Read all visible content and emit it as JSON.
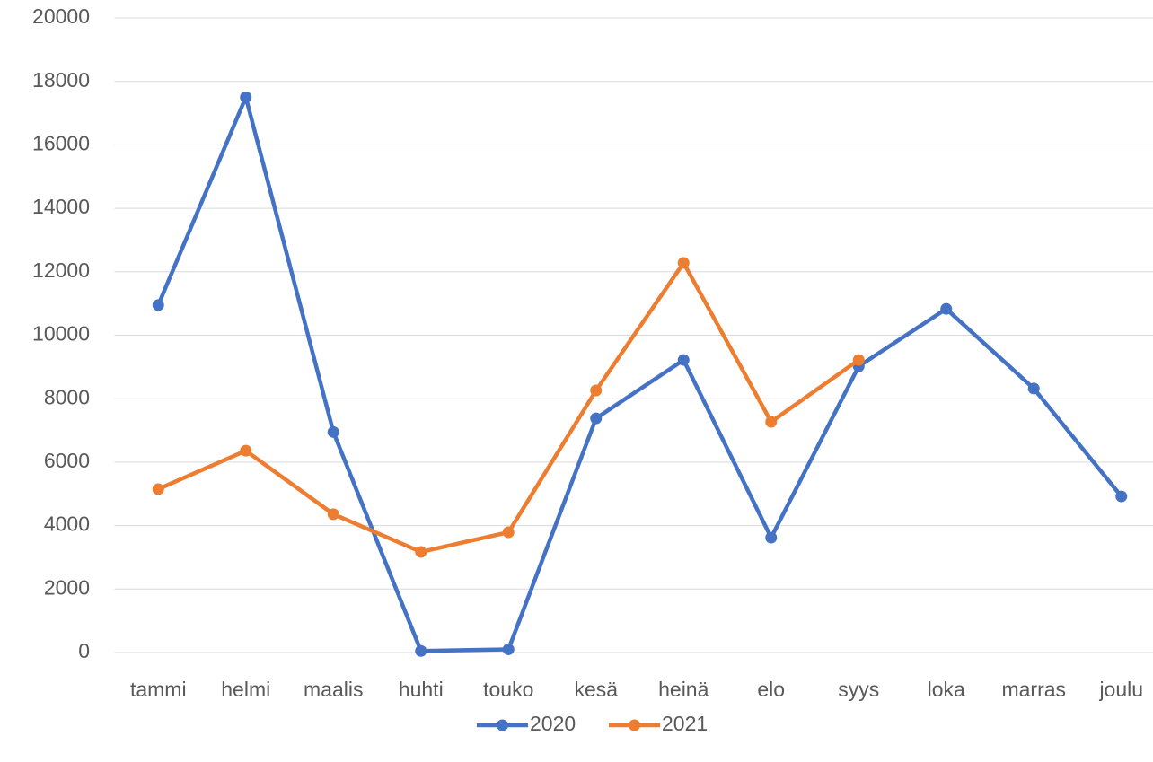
{
  "chart_data": {
    "type": "line",
    "categories": [
      "tammi",
      "helmi",
      "maalis",
      "huhti",
      "touko",
      "kesä",
      "heinä",
      "elo",
      "syys",
      "loka",
      "marras",
      "joulu"
    ],
    "series": [
      {
        "name": "2020",
        "color": "#4472c4",
        "values": [
          10950,
          17500,
          6950,
          50,
          100,
          7380,
          9220,
          3620,
          9020,
          10830,
          8320,
          4920
        ]
      },
      {
        "name": "2021",
        "color": "#ed7d31",
        "values": [
          5150,
          6360,
          4360,
          3170,
          3790,
          8260,
          12280,
          7270,
          9220,
          null,
          null,
          null
        ]
      }
    ],
    "ylim": [
      0,
      20000
    ],
    "yticks": [
      0,
      2000,
      4000,
      6000,
      8000,
      10000,
      12000,
      14000,
      16000,
      18000,
      20000
    ],
    "grid": true,
    "legend": "bottom"
  }
}
